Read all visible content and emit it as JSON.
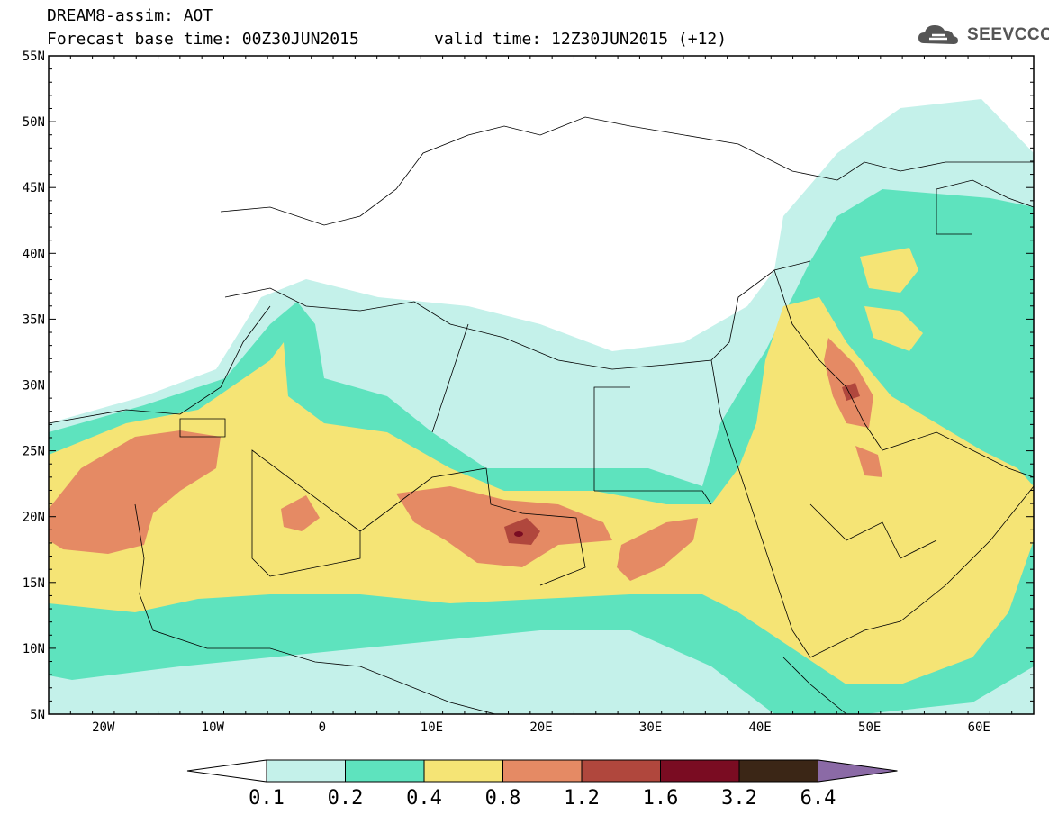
{
  "header": {
    "title": "DREAM8-assim: AOT",
    "base_time": "Forecast base time: 00Z30JUN2015",
    "valid_time": "valid time: 12Z30JUN2015 (+12)"
  },
  "logo": {
    "text": "SEEVCCC",
    "icon": "cloud-icon",
    "color": "#555555"
  },
  "map": {
    "lon_range": [
      -25,
      65
    ],
    "lat_range": [
      5,
      55
    ],
    "lon_labels": [
      {
        "lon": -20,
        "text": "20W"
      },
      {
        "lon": -10,
        "text": "10W"
      },
      {
        "lon": 0,
        "text": "0"
      },
      {
        "lon": 10,
        "text": "10E"
      },
      {
        "lon": 20,
        "text": "20E"
      },
      {
        "lon": 30,
        "text": "30E"
      },
      {
        "lon": 40,
        "text": "40E"
      },
      {
        "lon": 50,
        "text": "50E"
      },
      {
        "lon": 60,
        "text": "60E"
      }
    ],
    "lat_labels": [
      {
        "lat": 55,
        "text": "55N"
      },
      {
        "lat": 50,
        "text": "50N"
      },
      {
        "lat": 45,
        "text": "45N"
      },
      {
        "lat": 40,
        "text": "40N"
      },
      {
        "lat": 35,
        "text": "35N"
      },
      {
        "lat": 30,
        "text": "30N"
      },
      {
        "lat": 25,
        "text": "25N"
      },
      {
        "lat": 20,
        "text": "20N"
      },
      {
        "lat": 15,
        "text": "15N"
      },
      {
        "lat": 10,
        "text": "10N"
      },
      {
        "lat": 5,
        "text": "5N"
      }
    ]
  },
  "colorbar": {
    "labels": [
      "0.1",
      "0.2",
      "0.4",
      "0.8",
      "1.2",
      "1.6",
      "3.2",
      "6.4"
    ],
    "colors": [
      "#ffffff",
      "#c4f1ea",
      "#5ee3be",
      "#f5e475",
      "#e58a64",
      "#b0473d",
      "#7a0c22",
      "#3b2616",
      "#8b6aa6"
    ]
  }
}
